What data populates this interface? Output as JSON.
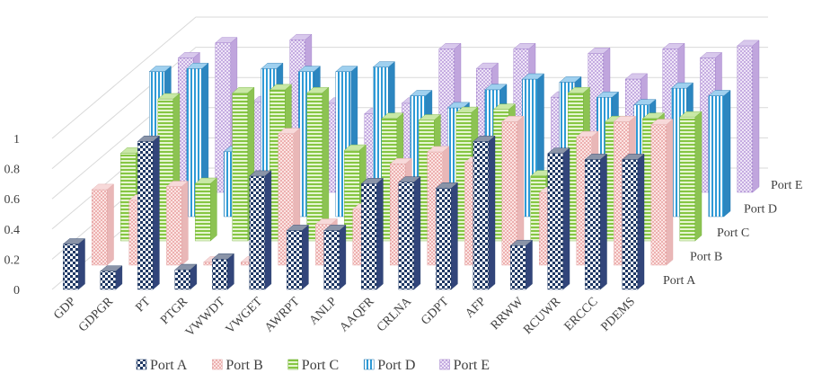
{
  "chart_data": {
    "type": "bar",
    "subtype": "3d-clustered-column",
    "categories": [
      "GDP",
      "GDPGR",
      "PT",
      "PTGR",
      "VWWDT",
      "VWGET",
      "AWRPT",
      "ANLP",
      "AAQFR",
      "CRLNA",
      "GDPT",
      "AFP",
      "RRWW",
      "RCUWR",
      "ERCCC",
      "PDEMS"
    ],
    "series": [
      {
        "name": "Port A",
        "color": "#1f3864",
        "pattern": "checker",
        "values": [
          0.3,
          0.12,
          0.98,
          0.13,
          0.2,
          0.75,
          0.39,
          0.39,
          0.7,
          0.71,
          0.67,
          0.98,
          0.29,
          0.9,
          0.86,
          0.86
        ]
      },
      {
        "name": "Port B",
        "color": "#f2b8b8",
        "pattern": "dots",
        "values": [
          0.5,
          0.43,
          0.52,
          0.02,
          0.02,
          0.87,
          0.27,
          0.37,
          0.67,
          0.75,
          0.68,
          0.95,
          0.48,
          0.85,
          0.95,
          0.93
        ]
      },
      {
        "name": "Port C",
        "color": "#92d050",
        "pattern": "hlines",
        "values": [
          0.58,
          0.94,
          0.38,
          0.98,
          1.0,
          0.98,
          0.6,
          0.81,
          0.8,
          0.85,
          0.87,
          0.43,
          0.98,
          0.79,
          0.81,
          0.82
        ]
      },
      {
        "name": "Port D",
        "color": "#2e9ad6",
        "pattern": "vlines",
        "values": [
          0.96,
          0.98,
          0.43,
          0.98,
          0.96,
          0.96,
          0.99,
          0.8,
          0.72,
          0.84,
          0.91,
          0.89,
          0.79,
          0.74,
          0.85,
          0.8
        ]
      },
      {
        "name": "Port E",
        "color": "#b79cd8",
        "pattern": "dots",
        "values": [
          0.89,
          0.99,
          0.6,
          1.01,
          0.59,
          0.52,
          0.59,
          0.95,
          0.82,
          0.95,
          0.63,
          0.92,
          0.75,
          0.95,
          0.89,
          0.97
        ]
      }
    ],
    "depth_labels": [
      "Port A",
      "Port B",
      "Port C",
      "Port D",
      "Port E"
    ],
    "ytick_labels": [
      "0",
      "0.2",
      "0.4",
      "0.6",
      "0.8",
      "1"
    ],
    "ylim": [
      0,
      1
    ],
    "grid": true,
    "legend_position": "bottom",
    "title": "",
    "xlabel": "",
    "ylabel": ""
  }
}
